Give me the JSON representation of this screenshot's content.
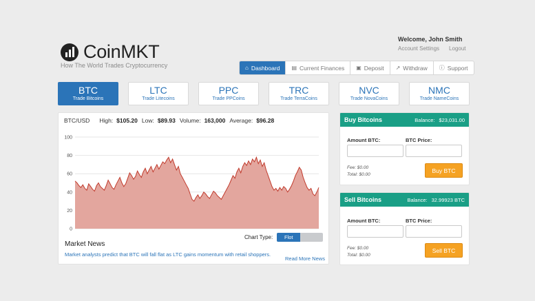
{
  "brand": {
    "name": "CoinMKT",
    "tagline": "How The World Trades Cryptocurrency"
  },
  "account": {
    "welcome": "Welcome, John Smith",
    "settings_label": "Account Settings",
    "logout_label": "Logout"
  },
  "topnav": [
    {
      "label": "Dashboard",
      "icon": "home-icon",
      "active": true
    },
    {
      "label": "Current Finances",
      "icon": "stack-icon",
      "active": false
    },
    {
      "label": "Deposit",
      "icon": "deposit-icon",
      "active": false
    },
    {
      "label": "Withdraw",
      "icon": "withdraw-icon",
      "active": false
    },
    {
      "label": "Support",
      "icon": "info-icon",
      "active": false
    }
  ],
  "coins": [
    {
      "symbol": "BTC",
      "sub": "Trade Bitcoins",
      "active": true
    },
    {
      "symbol": "LTC",
      "sub": "Trade Litecoins",
      "active": false
    },
    {
      "symbol": "PPC",
      "sub": "Trade PPCoins",
      "active": false
    },
    {
      "symbol": "TRC",
      "sub": "Trade TerraCoins",
      "active": false
    },
    {
      "symbol": "NVC",
      "sub": "Trade NovaCoins",
      "active": false
    },
    {
      "symbol": "NMC",
      "sub": "Trade NameCoins",
      "active": false
    }
  ],
  "stats": {
    "pair": "BTC/USD",
    "high_label": "High:",
    "high": "$105.20",
    "low_label": "Low:",
    "low": "$89.93",
    "volume_label": "Volume:",
    "volume": "163,000",
    "average_label": "Average:",
    "average": "$96.28"
  },
  "chart_data": {
    "type": "area",
    "ylim": [
      0,
      100
    ],
    "yticks": [
      0,
      20,
      40,
      60,
      80,
      100
    ],
    "grid": true,
    "colors": {
      "line": "#c0392b",
      "fill": "#e3a69e"
    },
    "values": [
      52,
      50,
      47,
      45,
      48,
      44,
      42,
      49,
      46,
      43,
      41,
      47,
      50,
      46,
      44,
      42,
      47,
      53,
      49,
      45,
      43,
      48,
      52,
      56,
      50,
      46,
      49,
      55,
      61,
      58,
      54,
      57,
      63,
      59,
      56,
      62,
      66,
      60,
      64,
      68,
      62,
      66,
      70,
      65,
      69,
      73,
      71,
      75,
      78,
      72,
      76,
      70,
      64,
      68,
      60,
      56,
      52,
      48,
      44,
      38,
      32,
      30,
      34,
      37,
      33,
      36,
      40,
      38,
      35,
      33,
      37,
      41,
      39,
      36,
      34,
      32,
      36,
      40,
      44,
      48,
      53,
      58,
      55,
      62,
      66,
      61,
      68,
      72,
      69,
      74,
      70,
      76,
      73,
      78,
      71,
      75,
      68,
      72,
      64,
      58,
      52,
      46,
      42,
      44,
      41,
      45,
      42,
      46,
      44,
      40,
      43,
      47,
      52,
      58,
      62,
      67,
      64,
      56,
      50,
      45,
      42,
      44,
      38,
      36,
      40,
      45
    ]
  },
  "chart_controls": {
    "label": "Chart Type:",
    "option_on": "Flot"
  },
  "news": {
    "title": "Market News",
    "text": "Market analysts predict that BTC will fall flat as LTC gains momentum with retail shoppers.",
    "more": "Read More News"
  },
  "buy": {
    "title": "Buy Bitcoins",
    "balance_label": "Balance:",
    "balance": "$23,031.00",
    "amount_label": "Amount BTC:",
    "price_label": "BTC Price:",
    "fee": "Fee: $0.00",
    "total": "Total: $0.00",
    "button": "Buy BTC"
  },
  "sell": {
    "title": "Sell Bitcoins",
    "balance_label": "Balance:",
    "balance": "32.99923 BTC",
    "amount_label": "Amount BTC:",
    "price_label": "BTC Price:",
    "fee": "Fee: $0.00",
    "total": "Total: $0.00",
    "button": "Sell BTC"
  }
}
